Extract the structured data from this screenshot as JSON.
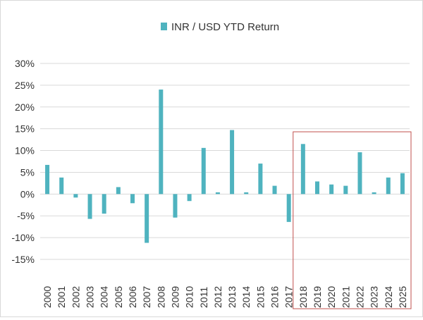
{
  "chart_data": {
    "type": "bar",
    "title": "",
    "xlabel": "",
    "ylabel": "",
    "legend": {
      "position": "top-center",
      "entries": [
        "INR / USD YTD Return"
      ]
    },
    "categories": [
      "2000",
      "2001",
      "2002",
      "2003",
      "2004",
      "2005",
      "2006",
      "2007",
      "2008",
      "2009",
      "2010",
      "2011",
      "2012",
      "2013",
      "2014",
      "2015",
      "2016",
      "2017",
      "2018",
      "2019",
      "2020",
      "2021",
      "2022",
      "2023",
      "2024",
      "2025"
    ],
    "series": [
      {
        "name": "INR / USD YTD Return",
        "color": "#4fb3bf",
        "values": [
          6.7,
          3.8,
          -0.8,
          -5.7,
          -4.5,
          1.6,
          -2.1,
          -11.2,
          24.0,
          -5.4,
          -1.6,
          10.6,
          0.4,
          14.7,
          0.4,
          7.0,
          1.9,
          -6.4,
          11.5,
          2.9,
          2.2,
          1.9,
          9.6,
          0.4,
          3.8,
          4.8
        ]
      }
    ],
    "ylim": [
      -15,
      30
    ],
    "yticks": [
      -15,
      -10,
      -5,
      0,
      5,
      10,
      15,
      20,
      25,
      30
    ],
    "ytick_format": "percent",
    "grid": true,
    "highlight": {
      "from": "2018",
      "to": "2025",
      "color": "#c0504d"
    }
  }
}
